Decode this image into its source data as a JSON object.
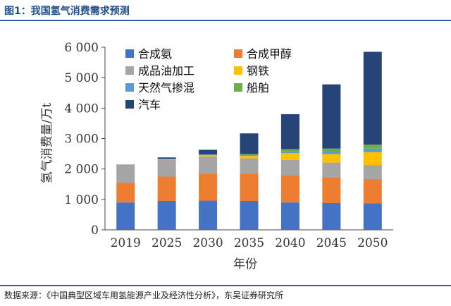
{
  "header": {
    "title": "图1：我国氢气消费需求预测"
  },
  "source": "数据来源：《中国典型区域车用氢能源产业及经济性分析》，东吴证券研究所",
  "chart_data": {
    "type": "bar",
    "stacked": true,
    "xlabel": "年份",
    "ylabel": "氢气消费量/万t",
    "ylim": [
      0,
      6000
    ],
    "yticks": [
      0,
      1000,
      2000,
      3000,
      4000,
      5000,
      6000
    ],
    "ytick_labels": [
      "0",
      "1 000",
      "2 000",
      "3 000",
      "4 000",
      "5 000",
      "6 000"
    ],
    "categories": [
      "2019",
      "2025",
      "2030",
      "2035",
      "2040",
      "2045",
      "2050"
    ],
    "legend_placement": "top-left",
    "series": [
      {
        "name": "合成氨",
        "color": "#4472c4",
        "values": [
          900,
          950,
          960,
          950,
          900,
          880,
          870
        ]
      },
      {
        "name": "合成甲醇",
        "color": "#ed7d31",
        "values": [
          650,
          800,
          900,
          900,
          900,
          850,
          800
        ]
      },
      {
        "name": "成品油加工",
        "color": "#a5a5a5",
        "values": [
          600,
          550,
          550,
          500,
          500,
          480,
          460
        ]
      },
      {
        "name": "钢铁",
        "color": "#ffc000",
        "values": [
          0,
          20,
          40,
          80,
          220,
          280,
          420
        ]
      },
      {
        "name": "天然气掺混",
        "color": "#5b9bd5",
        "values": [
          0,
          10,
          20,
          30,
          50,
          80,
          120
        ]
      },
      {
        "name": "船舶",
        "color": "#70ad47",
        "values": [
          0,
          0,
          10,
          30,
          80,
          100,
          130
        ]
      },
      {
        "name": "汽车",
        "color": "#264478",
        "values": [
          0,
          50,
          150,
          680,
          1150,
          2110,
          3050
        ]
      }
    ]
  }
}
